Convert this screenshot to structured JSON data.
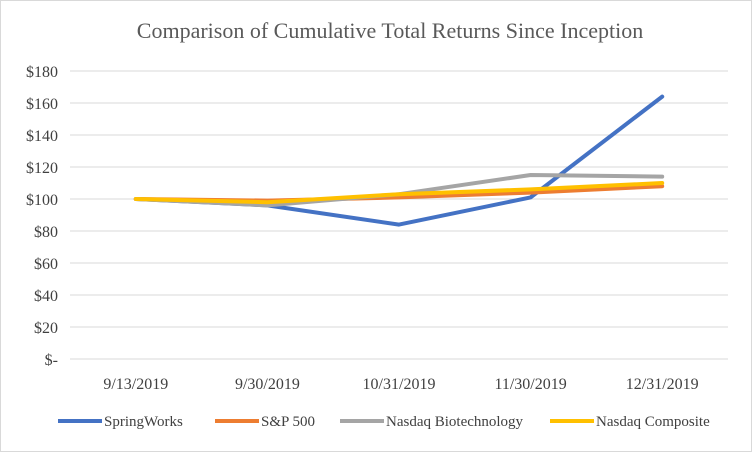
{
  "chart_data": {
    "type": "line",
    "title": "Comparison of Cumulative Total Returns Since Inception",
    "xlabel": "",
    "ylabel": "",
    "categories": [
      "9/13/2019",
      "9/30/2019",
      "10/31/2019",
      "11/30/2019",
      "12/31/2019"
    ],
    "ylim": [
      0,
      180
    ],
    "yticks": [
      {
        "value": 0,
        "label": "$-"
      },
      {
        "value": 20,
        "label": "$20"
      },
      {
        "value": 40,
        "label": "$40"
      },
      {
        "value": 60,
        "label": "$60"
      },
      {
        "value": 80,
        "label": "$80"
      },
      {
        "value": 100,
        "label": "$100"
      },
      {
        "value": 120,
        "label": "$120"
      },
      {
        "value": 140,
        "label": "$140"
      },
      {
        "value": 160,
        "label": "$160"
      },
      {
        "value": 180,
        "label": "$180"
      }
    ],
    "grid": true,
    "legend_position": "bottom",
    "series": [
      {
        "name": "SpringWorks",
        "color": "#4472C4",
        "values": [
          100,
          96,
          84,
          101,
          164
        ]
      },
      {
        "name": "S&P 500",
        "color": "#ED7D31",
        "values": [
          100,
          99,
          101,
          104,
          108
        ]
      },
      {
        "name": "Nasdaq Biotechnology",
        "color": "#A5A5A5",
        "values": [
          100,
          96,
          103,
          115,
          114
        ]
      },
      {
        "name": "Nasdaq Composite",
        "color": "#FFC000",
        "values": [
          100,
          98,
          103,
          106,
          110
        ]
      }
    ]
  }
}
